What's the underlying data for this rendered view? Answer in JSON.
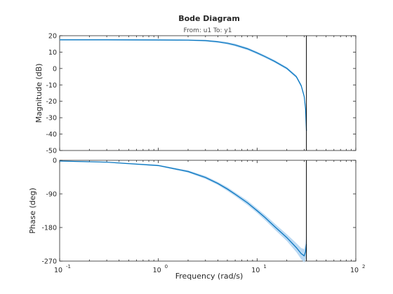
{
  "chart_data": {
    "type": "line",
    "title": "Bode Diagram",
    "subtitle": "From: u1  To: y1",
    "xlabel": "Frequency  (rad/s)",
    "xscale": "log",
    "xlim": [
      0.1,
      100
    ],
    "x_ticks": [
      {
        "value": 0.1,
        "base": "10",
        "exp": "-1"
      },
      {
        "value": 1,
        "base": "10",
        "exp": "0"
      },
      {
        "value": 10,
        "base": "10",
        "exp": "1"
      },
      {
        "value": 100,
        "base": "10",
        "exp": "2"
      }
    ],
    "vertical_marker_x": 31.6,
    "grid": false,
    "colors": {
      "line": "#0072bd",
      "band": "#b3d5f2",
      "marker": "#000000",
      "axes": "#262626"
    },
    "panels": [
      {
        "name": "magnitude",
        "ylabel": "Magnitude (dB)",
        "ylim": [
          -50,
          20
        ],
        "yticks": [
          "20",
          "10",
          "0",
          "-10",
          "-20",
          "-30",
          "-40",
          "-50"
        ],
        "ytick_values": [
          20,
          10,
          0,
          -10,
          -20,
          -30,
          -40,
          -50
        ],
        "x": [
          0.1,
          0.3,
          1,
          2,
          3,
          4,
          5,
          6,
          8,
          10,
          12,
          15,
          20,
          25,
          28,
          30,
          31,
          31.6
        ],
        "y": [
          17.5,
          17.5,
          17.4,
          17.3,
          17.0,
          16.3,
          15.4,
          14.3,
          12.0,
          9.5,
          7.3,
          4.4,
          0.1,
          -5.0,
          -10.5,
          -17.0,
          -25.0,
          -38.0
        ],
        "band": [
          0.4,
          0.4,
          0.4,
          0.4,
          0.5,
          0.6,
          0.7,
          0.8,
          0.8,
          0.8,
          0.8,
          0.8,
          0.8,
          0.9,
          1.0,
          1.2,
          1.5,
          2.0
        ]
      },
      {
        "name": "phase",
        "ylabel": "Phase (deg)",
        "ylim": [
          -270,
          0
        ],
        "yticks": [
          "0",
          "-90",
          "-180",
          "-270"
        ],
        "ytick_values": [
          0,
          -90,
          -180,
          -270
        ],
        "x": [
          0.1,
          0.3,
          1,
          2,
          3,
          4,
          5,
          6,
          8,
          10,
          12,
          15,
          20,
          25,
          28,
          30,
          31,
          31.6
        ],
        "y": [
          -2,
          -5,
          -14,
          -30,
          -46,
          -62,
          -77,
          -91,
          -114,
          -135,
          -153,
          -177,
          -207,
          -234,
          -250,
          -256,
          -244,
          -225
        ],
        "band": [
          1,
          1,
          2,
          3,
          4,
          4,
          5,
          5,
          6,
          6,
          7,
          8,
          9,
          12,
          15,
          18,
          22,
          26
        ]
      }
    ]
  }
}
